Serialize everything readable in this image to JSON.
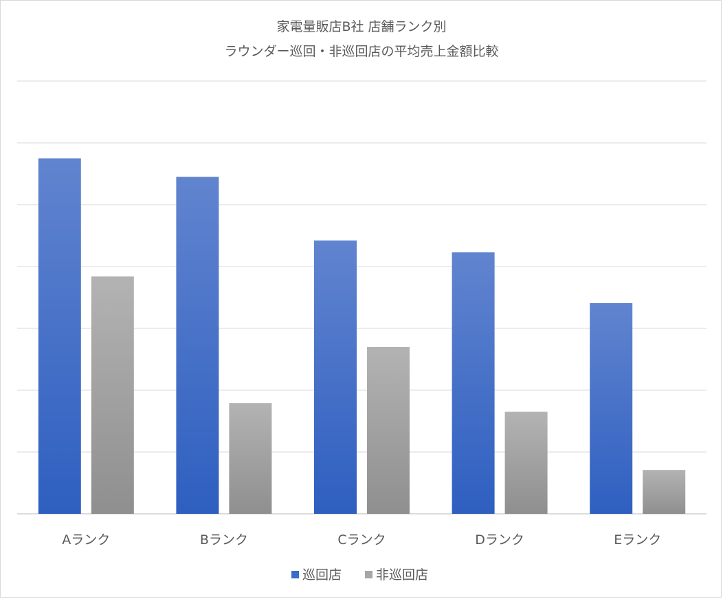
{
  "chart_data": {
    "type": "bar",
    "title": "家電量販店B社 店舗ランク別",
    "subtitle": "ラウンダー巡回・非巡回店の平均売上金額比較",
    "categories": [
      "Aランク",
      "Bランク",
      "Cランク",
      "Dランク",
      "Eランク"
    ],
    "series": [
      {
        "name": "巡回店",
        "color": "#3a6cc8",
        "values": [
          5.75,
          5.45,
          4.42,
          4.23,
          3.41
        ]
      },
      {
        "name": "非巡回店",
        "color": "#a6a6a6",
        "values": [
          3.84,
          1.79,
          2.7,
          1.65,
          0.71
        ]
      }
    ],
    "ylim": [
      0,
      7
    ],
    "grid": true,
    "y_tick_labels_shown": false,
    "legend": "bottom"
  }
}
